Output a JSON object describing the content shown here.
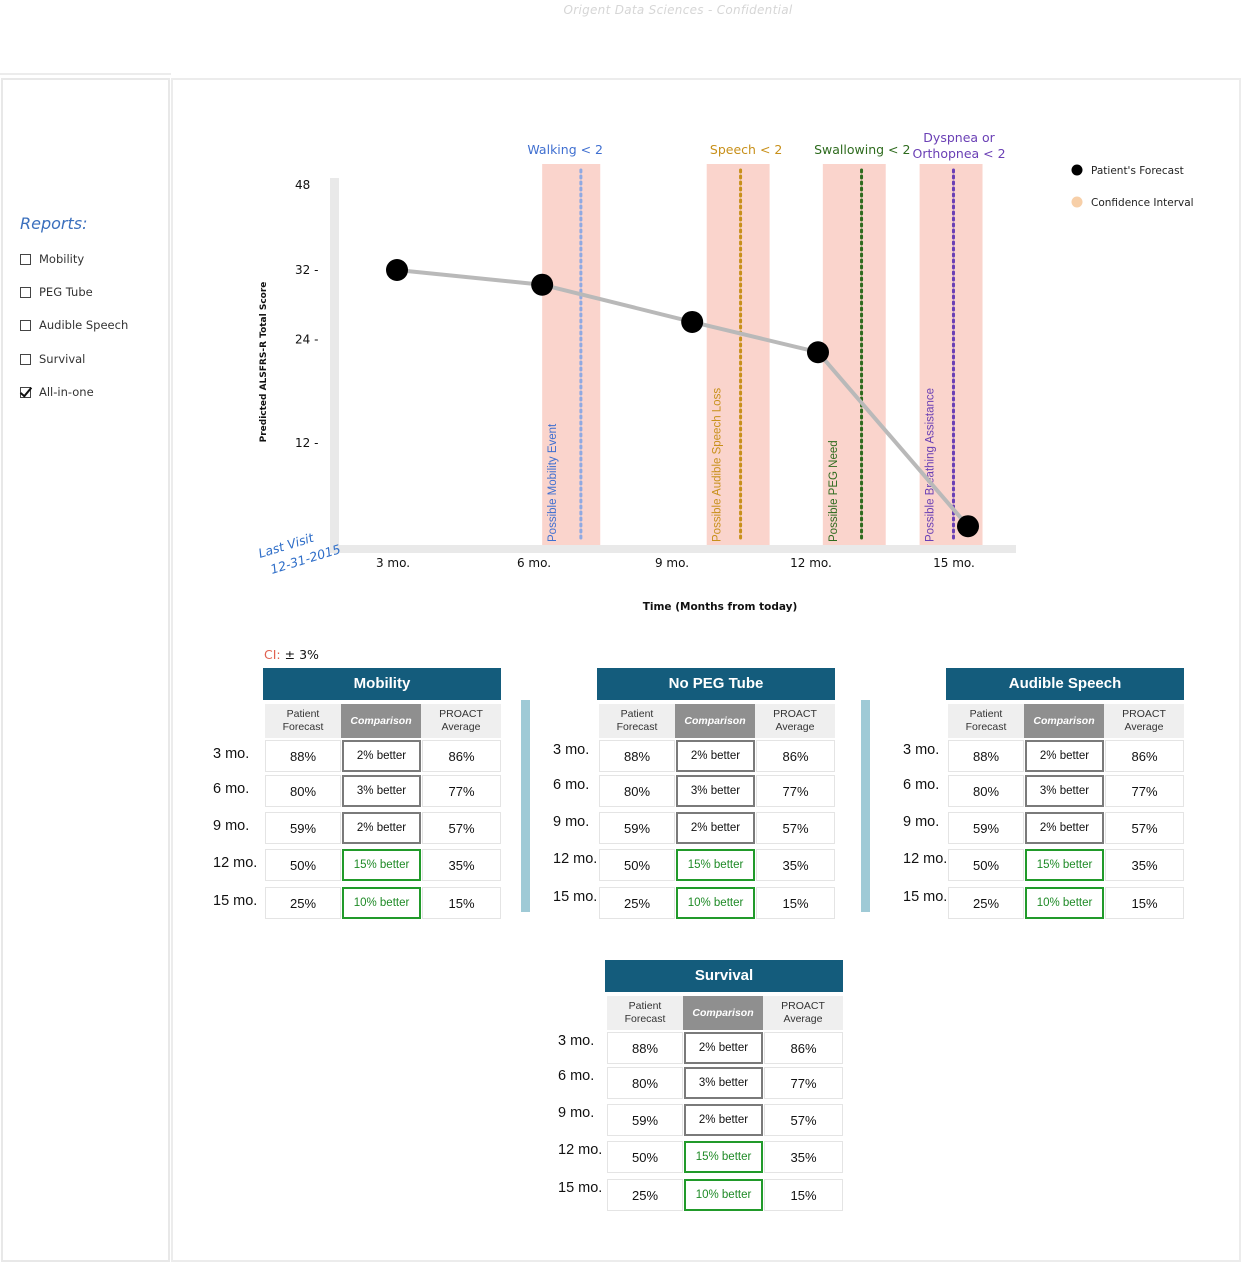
{
  "header": {
    "confidential_text": "Origent Data Sciences - Confidential"
  },
  "sidebar": {
    "title": "Reports:",
    "items": [
      {
        "label": "Mobility",
        "checked": false
      },
      {
        "label": "PEG Tube",
        "checked": false
      },
      {
        "label": "Audible Speech",
        "checked": false
      },
      {
        "label": "Survival",
        "checked": false
      },
      {
        "label": "All-in-one",
        "checked": true
      }
    ]
  },
  "chart_data": {
    "type": "line",
    "title": "",
    "xlabel": "Time (Months from today)",
    "ylabel": "Predicted ALSFRS-R Total Score",
    "y_ticks": [
      "48",
      "32 -",
      "24 -",
      "12 -"
    ],
    "y_tick_values": [
      48,
      32,
      24,
      12
    ],
    "ylim": [
      0,
      48
    ],
    "categories": [
      "3 mo.",
      "6 mo.",
      "9 mo.",
      "12 mo.",
      "15 mo."
    ],
    "last_visit": {
      "label": "Last Visit",
      "date": "12-31-2015"
    },
    "series": [
      {
        "name": "Patient's Forecast",
        "x": [
          3.2,
          6.2,
          9.3,
          11.9,
          15.0
        ],
        "values": [
          32,
          30.3,
          26,
          22.5,
          2.4
        ],
        "color": "#000000"
      }
    ],
    "legend": {
      "position": "top-right",
      "items": [
        {
          "label": "Patient's Forecast",
          "color": "#000000"
        },
        {
          "label": "Confidence Interval",
          "color": "#f7cfa8"
        }
      ]
    },
    "events": [
      {
        "threshold_label": "Walking < 2",
        "event_label": "Possible Mobility Event",
        "x": 7.0,
        "band": [
          6.2,
          7.4
        ],
        "color": "#3f6fd0",
        "line_color": "#8fa9e2"
      },
      {
        "threshold_label": "Speech < 2",
        "event_label": "Possible Audible Speech Loss",
        "x": 10.3,
        "band": [
          9.6,
          10.9
        ],
        "color": "#c8901a",
        "line_color": "#c8901a"
      },
      {
        "threshold_label": "Swallowing < 2",
        "event_label": "Possible PEG Need",
        "x": 12.8,
        "band": [
          12.0,
          13.3
        ],
        "color": "#2e6b1e",
        "line_color": "#2e6b1e"
      },
      {
        "threshold_label": "Dyspnea or\nOrthopnea < 2",
        "event_label": "Possible Breathing Assistance",
        "x": 14.7,
        "band": [
          14.0,
          15.3
        ],
        "color": "#6a3fb5",
        "line_color": "#6a3fb5"
      }
    ],
    "band_color": "#fad4cc",
    "grid": false
  },
  "ci": {
    "key": "CI:",
    "value": "± 3%"
  },
  "tables": {
    "col_patient": "Patient Forecast",
    "col_comparison": "Comparison",
    "col_proact": "PROACT Average",
    "row_labels": [
      "3 mo.",
      "6 mo.",
      "9 mo.",
      "12 mo.",
      "15 mo."
    ],
    "patient_values": [
      "88%",
      "80%",
      "59%",
      "50%",
      "25%"
    ],
    "comparison_values": [
      "2% better",
      "3% better",
      "2% better",
      "15% better",
      "10% better"
    ],
    "comparison_good": [
      false,
      false,
      false,
      true,
      true
    ],
    "proact_values": [
      "86%",
      "77%",
      "57%",
      "35%",
      "15%"
    ],
    "list": [
      {
        "title": "Mobility"
      },
      {
        "title": "No PEG Tube"
      },
      {
        "title": "Audible Speech"
      },
      {
        "title": "Survival"
      }
    ]
  },
  "colors": {
    "table_header": "#145c7c",
    "better_green": "#1e8a26",
    "separator": "#9fcad6"
  }
}
